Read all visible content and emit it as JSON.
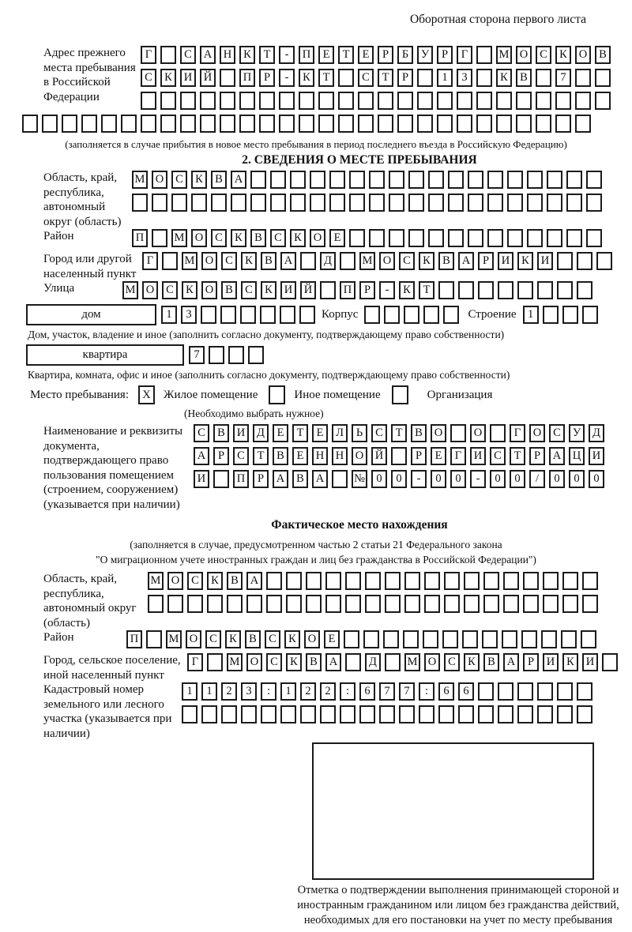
{
  "page": {
    "header_note": "Оборотная сторона первого листа"
  },
  "prev_address": {
    "label": "Адрес прежнего места пребывания в Российской Федерации",
    "rows": [
      "Г САНКТ-ПЕТЕРБУРГ МОСКОВ",
      "СКИЙ ПР-КТ СТР 13 КВ 7  ",
      "                        ",
      "                             "
    ],
    "note": "(заполняется в случае прибытия в новое место пребывания в период последнего въезда в Российскую Федерацию)"
  },
  "section2": {
    "title": "2. СВЕДЕНИЯ О МЕСТЕ ПРЕБЫВАНИЯ",
    "region": {
      "label": "Область, край, республика, автономный округ (область)",
      "rows": [
        "МОСКВА                  ",
        "                        "
      ]
    },
    "district": {
      "label": "Район",
      "row": "П МОСКВСКОЕ             "
    },
    "city": {
      "label": "Город или другой населенный пункт",
      "row": "Г МОСКВА Д МОСКВАРИКИ   "
    },
    "street": {
      "label": "Улица",
      "row": "МОСКОВСКИЙ ПР-КТ        "
    },
    "house": {
      "box_label": "дом",
      "cells": "13      ",
      "korpus_label": "Корпус",
      "korpus_cells": "     ",
      "stroenie_label": "Строение",
      "stroenie_cells": "1   ",
      "note": "Дом, участок, владение и иное (заполнить согласно документу, подтверждающему право собственности)"
    },
    "apartment": {
      "box_label": "квартира",
      "cells": "7   ",
      "note": "Квартира, комната, офис и иное (заполнить согласно документу, подтверждающему право собственности)"
    },
    "stay_type": {
      "label": "Место пребывания:",
      "options": [
        {
          "label": "Жилое помещение",
          "checked": "X"
        },
        {
          "label": "Иное помещение",
          "checked": " "
        },
        {
          "label": "Организация",
          "checked": " "
        }
      ],
      "note": "(Необходимо выбрать нужное)"
    },
    "document": {
      "label": "Наименование и реквизиты документа, подтверждающего право пользования помещением (строением, сооружением) (указывается при наличии)",
      "rows": [
        "СВИДЕТЕЛЬСТВО О ГОСУД",
        "АРСТВЕННОЙ РЕГИСТРАЦИ",
        "И ПРАВА №00-00-00/000"
      ]
    }
  },
  "actual_location": {
    "title": "Фактическое место нахождения",
    "note_line1": "(заполняется в случае, предусмотренном частью 2 статьи 21 Федерального закона",
    "note_line2": "\"О миграционном учете иностранных граждан и лиц без гражданства в Российской Федерации\")",
    "region": {
      "label": "Область, край, республика, автономный округ (область)",
      "rows": [
        "МОСКВА                 ",
        "                       "
      ]
    },
    "district": {
      "label": "Район",
      "row": "П МОСКВСКОЕ             "
    },
    "city": {
      "label": "Город, сельское поселение, иной населенный пункт",
      "row": "Г МОСКВА Д МОСКВАРИКИ "
    },
    "cadastral": {
      "label": "Кадастровый номер земельного или лесного участка (указывается при наличии)",
      "rows": [
        "1123:122:677:66      ",
        "                     "
      ]
    },
    "stamp_caption": "Отметка о подтверждении выполнения принимающей стороной и иностранным гражданином или лицом без гражданства действий, необходимых для его постановки на учет по месту пребывания"
  }
}
